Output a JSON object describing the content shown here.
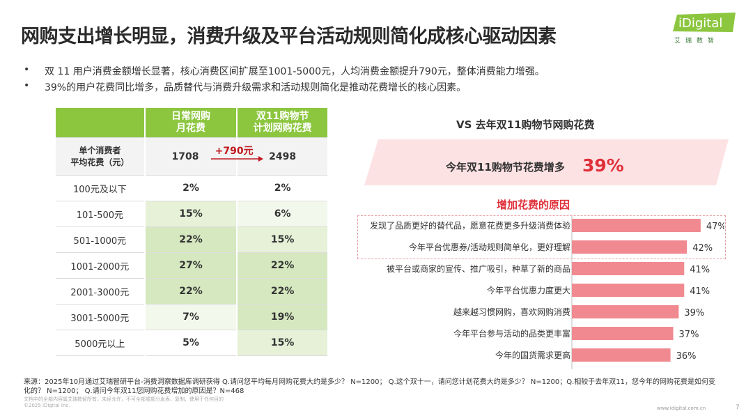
{
  "title": "网购支出增长明显，消费升级及平台活动规则简化成核心驱动因素",
  "logo": {
    "brand": "iDigital",
    "sub": "艾瑞数智"
  },
  "bullets": [
    "双 11 用户消费金额增长显著，核心消费区间扩展至1001-5000元，人均消费金额提升790元，整体消费能力增强。",
    "39%的用户花费同比增多，品质替代与消费升级需求和活动规则简化是推动花费增长的核心因素。"
  ],
  "table": {
    "header": {
      "col1": [
        "日常网购",
        "月花费"
      ],
      "col2": [
        "双11购物节",
        "计划网购花费"
      ]
    },
    "avg_row": {
      "label": [
        "单个消费者",
        "平均花费（元）"
      ],
      "v1": "1708",
      "delta": "+790元",
      "v2": "2498"
    },
    "rows": [
      {
        "label": "100元及以下",
        "v1": "2%",
        "v2": "2%"
      },
      {
        "label": "101-500元",
        "v1": "15%",
        "v2": "6%"
      },
      {
        "label": "501-1000元",
        "v1": "22%",
        "v2": "15%"
      },
      {
        "label": "1001-2000元",
        "v1": "27%",
        "v2": "22%"
      },
      {
        "label": "2001-3000元",
        "v1": "22%",
        "v2": "22%"
      },
      {
        "label": "3001-5000元",
        "v1": "7%",
        "v2": "19%"
      },
      {
        "label": "5000元以上",
        "v1": "5%",
        "v2": "15%"
      }
    ]
  },
  "vs_title": "VS 去年双11购物节网购花费",
  "banner": {
    "text": "今年双11购物节花费增多",
    "pct": "39%"
  },
  "reason_title": "增加花费的原因",
  "colors": {
    "green": "#8cc63f",
    "bar": "#f08a90",
    "red": "#e0303a",
    "banner": "#fde2e4"
  },
  "chart_data": {
    "type": "bar",
    "orientation": "horizontal",
    "title": "增加花费的原因",
    "categories": [
      "发现了品质更好的替代品，愿意花费更多升级消费体验",
      "今年平台优惠券/活动规则简单化，更好理解",
      "被平台或商家的宣传、推广吸引，种草了新的商品",
      "今年平台优惠力度更大",
      "越来越习惯网购，喜欢网购消费",
      "今年平台参与活动的品类更丰富",
      "今年的国货需求更高"
    ],
    "values": [
      47,
      42,
      41,
      41,
      39,
      37,
      36
    ],
    "value_labels": [
      "47%",
      "42%",
      "41%",
      "41%",
      "39%",
      "37%",
      "36%"
    ],
    "unit": "%",
    "xlim": [
      0,
      60
    ]
  },
  "footer": {
    "source": "来源：2025年10月通过艾瑞智研平台-消费洞察数据库调研获得 Q.请问您平均每月网购花费大约是多少？ N=1200； Q.这个双十一，请问您计划花费大约是多少？ N=1200；Q.相较于去年双11，您今年的网购花费是如何变化的？ N=1200； Q.请问今年双11您网购花费增加的原因是？N=468",
    "notice": "文档中的全部内容属艾瑞数智所有，未经允许，不可全部或部分发表、复制、使用于任何目的",
    "copyright": "©2025 iDigital Inc.",
    "site": "www.idigital.com.cn",
    "page": "7"
  }
}
